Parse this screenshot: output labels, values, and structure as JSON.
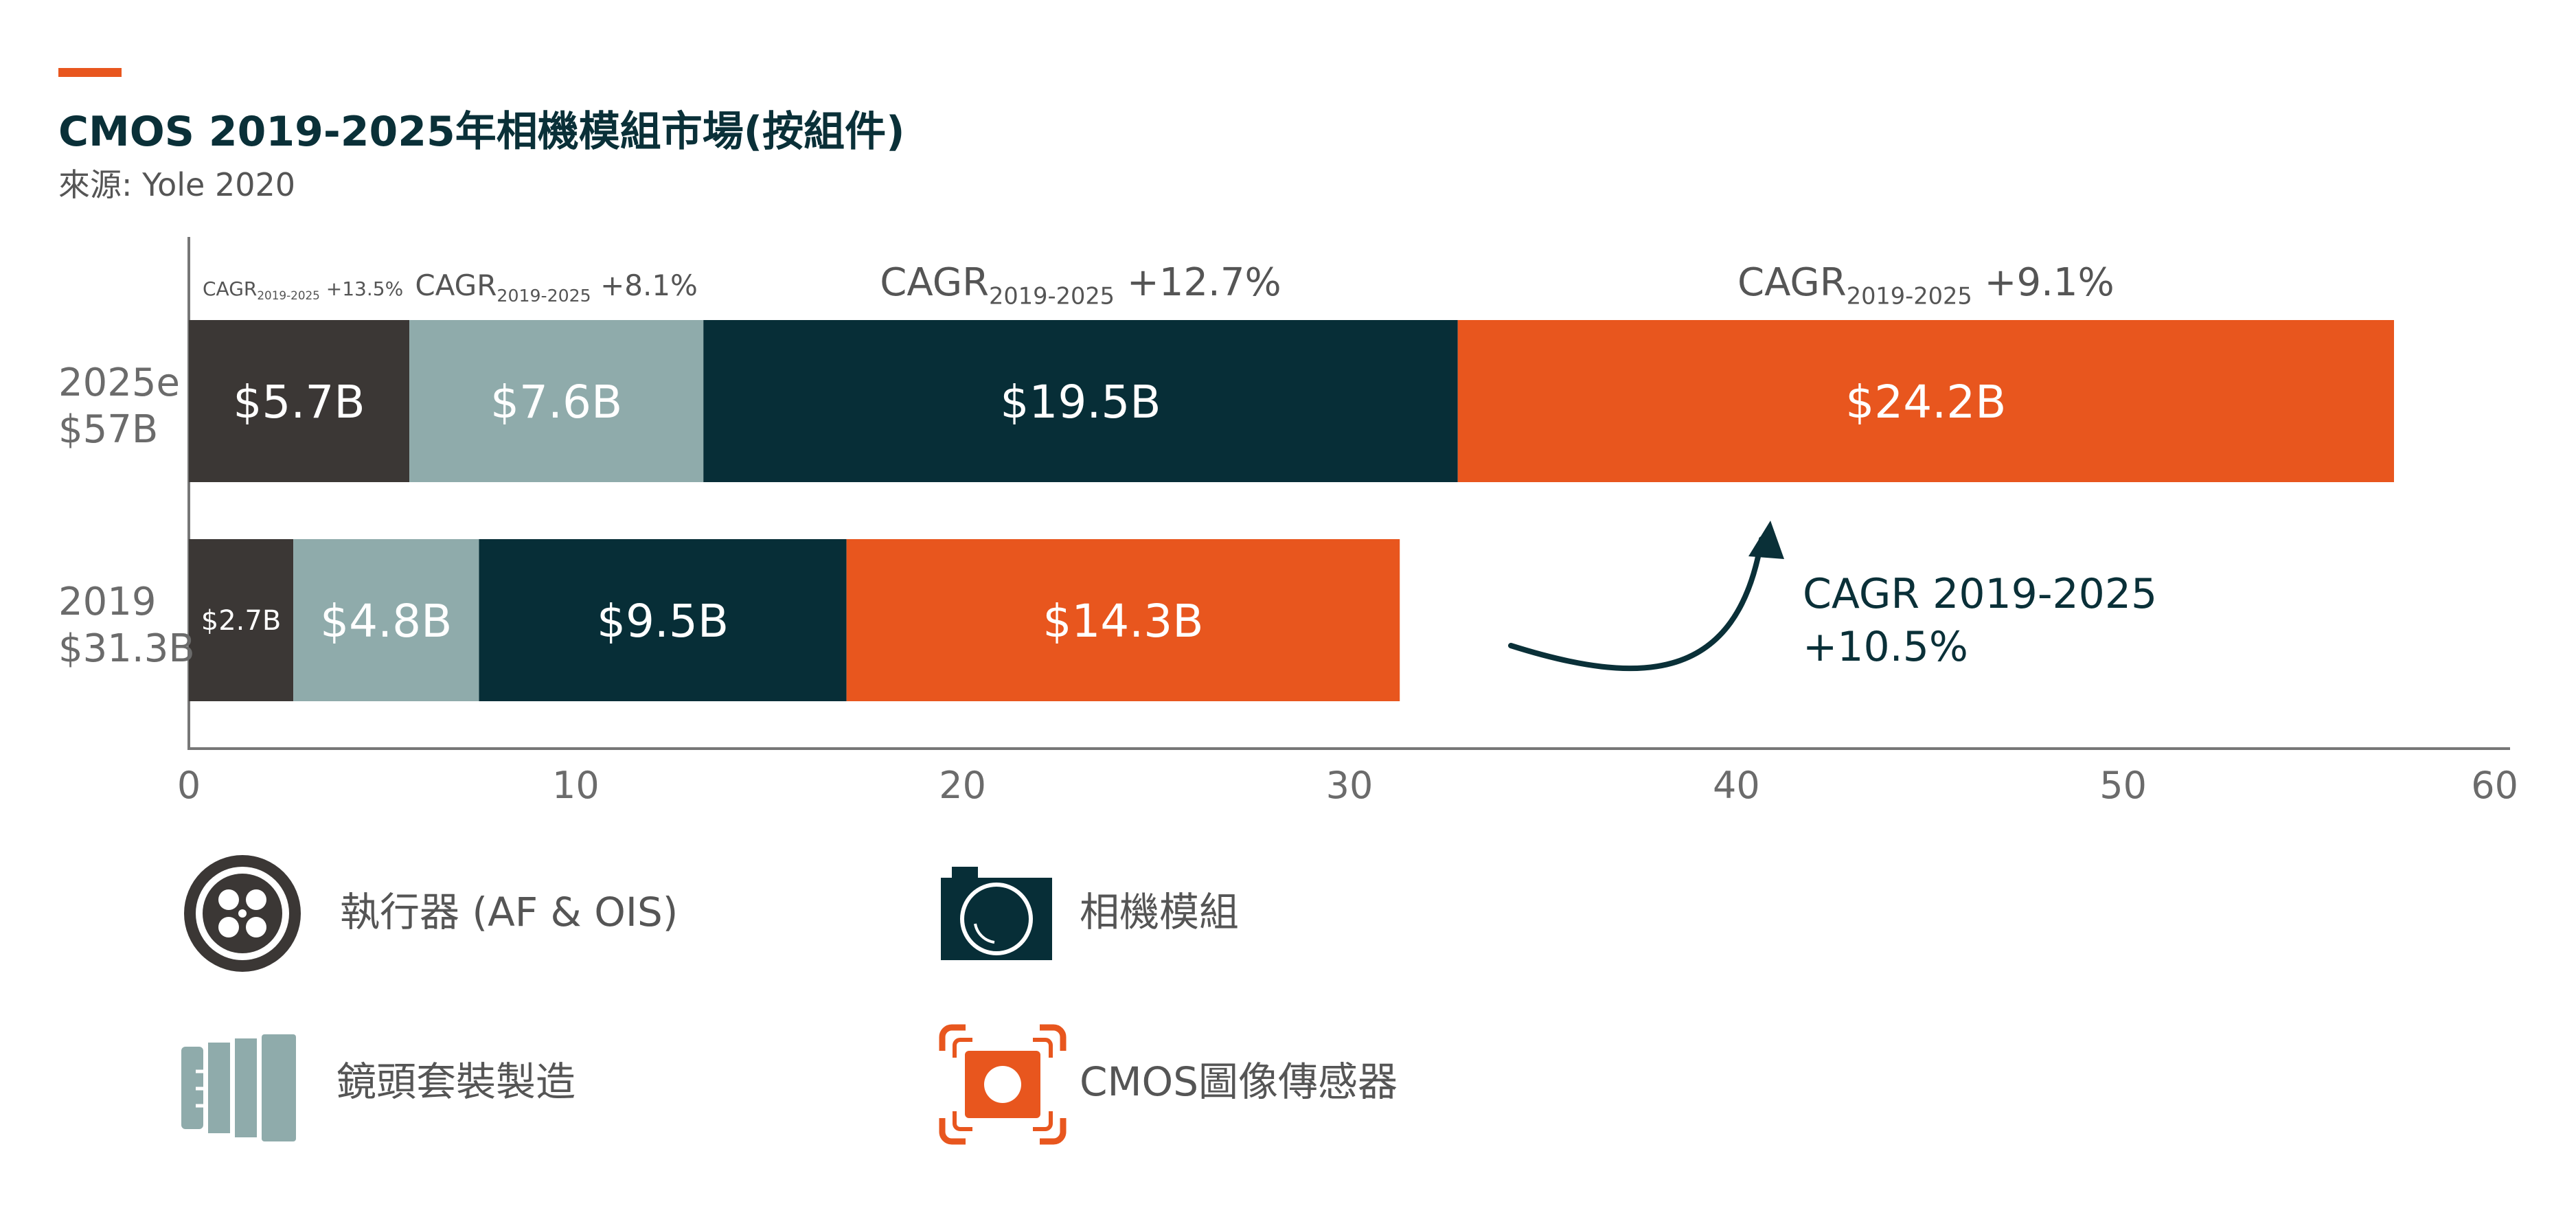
{
  "title": "CMOS 2019-2025年相機模組市場(按組件)",
  "subtitle": "來源: Yole 2020",
  "colors": {
    "accent": "#e8561e",
    "title": "#0a3038",
    "source": "#555555",
    "axis": "#6b6b6b",
    "actuator": "#3b3735",
    "lens": "#8fabab",
    "module": "#072e37",
    "cmos": "#e8561e"
  },
  "chart_data": {
    "type": "bar",
    "orientation": "horizontal",
    "stacked": true,
    "categories": [
      "2025e",
      "2019"
    ],
    "category_labels": [
      {
        "year": "2025e",
        "total": "$57B"
      },
      {
        "year": "2019",
        "total": "$31.3B"
      }
    ],
    "xlim": [
      0,
      60
    ],
    "xticks": [
      "0",
      "10",
      "20",
      "30",
      "40",
      "50",
      "60"
    ],
    "series": [
      {
        "name": "執行器 (AF & OIS)",
        "color_key": "actuator",
        "values": [
          5.7,
          2.7
        ],
        "labels": [
          "$5.7B",
          "$2.7B"
        ],
        "cagr_prefix": "CAGR",
        "cagr_sub": "2019-2025",
        "cagr_value": "+13.5%"
      },
      {
        "name": "鏡頭套裝製造",
        "color_key": "lens",
        "values": [
          7.6,
          4.8
        ],
        "labels": [
          "$7.6B",
          "$4.8B"
        ],
        "cagr_prefix": "CAGR",
        "cagr_sub": "2019-2025",
        "cagr_value": "+8.1%"
      },
      {
        "name": "相機模組",
        "color_key": "module",
        "values": [
          19.5,
          9.5
        ],
        "labels": [
          "$19.5B",
          "$9.5B"
        ],
        "cagr_prefix": "CAGR",
        "cagr_sub": "2019-2025",
        "cagr_value": "+12.7%"
      },
      {
        "name": "CMOS圖像傳感器",
        "color_key": "cmos",
        "values": [
          24.2,
          14.3
        ],
        "labels": [
          "$24.2B",
          "$14.3B"
        ],
        "cagr_prefix": "CAGR",
        "cagr_sub": "2019-2025",
        "cagr_value": "+9.1%"
      }
    ],
    "annotation": {
      "line1": "CAGR 2019-2025",
      "line2": "+10.5%"
    }
  },
  "legend": [
    {
      "label": "執行器 (AF & OIS)",
      "icon": "actuator-icon"
    },
    {
      "label": "相機模組",
      "icon": "camera-module-icon"
    },
    {
      "label": "鏡頭套裝製造",
      "icon": "lens-assembly-icon"
    },
    {
      "label": "CMOS圖像傳感器",
      "icon": "cmos-sensor-icon"
    }
  ]
}
